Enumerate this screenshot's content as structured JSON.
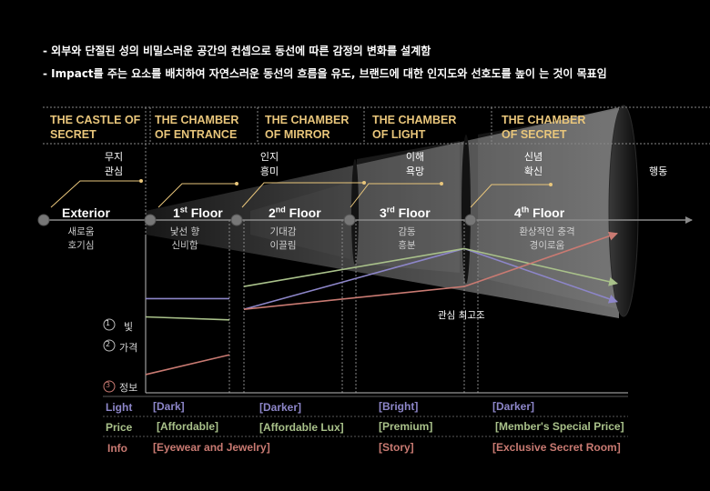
{
  "bullets": [
    "- 외부와 단절된 성의 비밀스러운 공간의 컨셉으로 동선에 따른 감정의 변화를 설계함",
    "- Impact를 주는 요소를 배치하여 자연스러운 동선의 흐름을 유도, 브랜드에 대한 인지도와 선호도를 높이  는 것이 목표임"
  ],
  "chambers": [
    "THE CASTLE OF SECRET",
    "THE CHAMBER OF ENTRANCE",
    "THE CHAMBER OF MIRROR",
    "THE CHAMBER OF LIGHT",
    "THE CHAMBER OF SECRET"
  ],
  "stages": [
    {
      "top": [
        "무지",
        "관심"
      ],
      "floor": "Exterior",
      "sup": "",
      "floor_rest": "",
      "sub": [
        "새로움",
        "호기심"
      ]
    },
    {
      "top": [],
      "floor": "1",
      "sup": "st",
      "floor_rest": " Floor",
      "sub": [
        "낯선 향",
        "신비함"
      ]
    },
    {
      "top": [
        "인지",
        "흥미"
      ],
      "floor": "2",
      "sup": "nd",
      "floor_rest": " Floor",
      "sub": [
        "기대감",
        "이끌림"
      ]
    },
    {
      "top": [
        "이해",
        "욕망"
      ],
      "floor": "3",
      "sup": "rd",
      "floor_rest": " Floor",
      "sub": [
        "감동",
        "흥분"
      ]
    },
    {
      "top": [
        "신념",
        "확신"
      ],
      "floor": "4",
      "sup": "th",
      "floor_rest": " Floor",
      "sub": [
        "환상적인 충격",
        "경이로움"
      ]
    }
  ],
  "action_label": "행동",
  "peak_label": "관심 최고조",
  "legend": [
    {
      "num": "①",
      "label": "빛",
      "color": "#8d86c9"
    },
    {
      "num": "②",
      "label": "가격",
      "color": "#a9c18a"
    },
    {
      "num": "③",
      "label": "정보",
      "color": "#c97a72"
    }
  ],
  "rows": [
    {
      "label": "Light",
      "color": "#8d86c9",
      "cells": [
        "[Dark]",
        "[Darker]",
        "[Bright]",
        "[Darker]"
      ]
    },
    {
      "label": "Price",
      "color": "#a9c18a",
      "cells": [
        "[Affordable]",
        "[Affordable Lux]",
        "[Premium]",
        "[Member's Special Price]"
      ]
    },
    {
      "label": "Info",
      "color": "#c97a72",
      "cells": [
        "[Eyewear and Jewelry]",
        "",
        "[Story]",
        "[Exclusive Secret Room]"
      ]
    }
  ],
  "series": {
    "light": [
      0.62,
      0.62,
      0.55,
      0.95,
      0.6
    ],
    "price": [
      0.5,
      0.48,
      0.7,
      0.95,
      0.72
    ],
    "info": [
      0.12,
      0.25,
      0.55,
      0.7,
      1.05
    ]
  },
  "colors": {
    "gold": "#e9c67b",
    "axis": "#8a8a8a"
  }
}
